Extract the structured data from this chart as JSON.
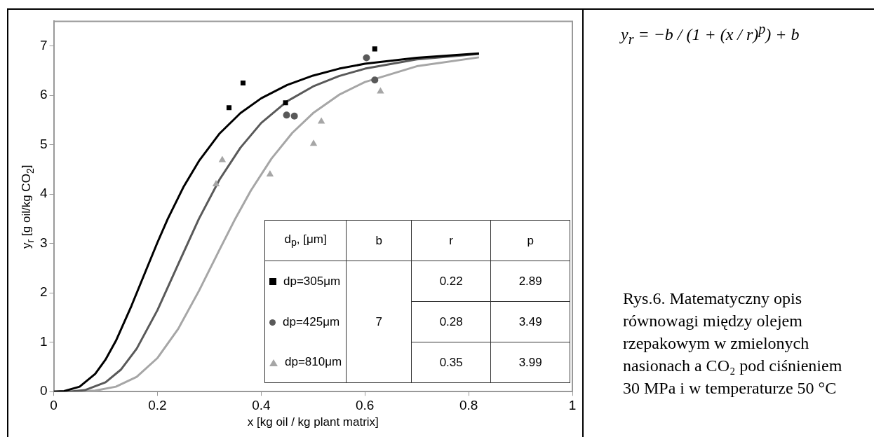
{
  "chart_data": {
    "type": "scatter",
    "xlabel": "x [kg oil / kg plant matrix]",
    "ylabel": "y$_{r}$ [g oil/kg CO$_{2}$]",
    "xlim": [
      0,
      1
    ],
    "xticks": [
      0,
      0.2,
      0.4,
      0.6,
      0.8,
      1
    ],
    "ylim": [
      0,
      7.5
    ],
    "yticks": [
      0,
      1,
      2,
      3,
      4,
      5,
      6,
      7
    ],
    "grid": false,
    "legend": "bottom right",
    "series": [
      {
        "type": "scatter",
        "name": "dp=305μm",
        "color": "#000000",
        "marker": "square",
        "x": [
          0.338,
          0.365,
          0.447,
          0.619
        ],
        "values": [
          5.75,
          6.25,
          5.85,
          6.94
        ]
      },
      {
        "type": "scatter",
        "name": "dp=425μm",
        "color": "#595959",
        "marker": "circle",
        "x": [
          0.449,
          0.464,
          0.603,
          0.619
        ],
        "values": [
          5.6,
          5.58,
          6.76,
          6.31
        ]
      },
      {
        "type": "scatter",
        "name": "dp=810μm",
        "color": "#a6a6a6",
        "marker": "triangle",
        "x": [
          0.313,
          0.325,
          0.417,
          0.501,
          0.516,
          0.63
        ],
        "values": [
          4.2,
          4.69,
          4.4,
          5.02,
          5.47,
          6.08
        ]
      },
      {
        "type": "line",
        "color": "#000000",
        "marker": "none",
        "x": [
          0,
          0.02,
          0.05,
          0.08,
          0.1,
          0.12,
          0.15,
          0.18,
          0.2,
          0.22,
          0.25,
          0.28,
          0.32,
          0.36,
          0.4,
          0.45,
          0.5,
          0.55,
          0.6,
          0.7,
          0.82
        ],
        "values": [
          0,
          0.01,
          0.1,
          0.36,
          0.65,
          1.03,
          1.74,
          2.51,
          3.02,
          3.5,
          4.14,
          4.67,
          5.23,
          5.64,
          5.94,
          6.21,
          6.4,
          6.54,
          6.64,
          6.76,
          6.85
        ]
      },
      {
        "type": "line",
        "color": "#595959",
        "marker": "none",
        "x": [
          0,
          0.03,
          0.06,
          0.1,
          0.13,
          0.16,
          0.2,
          0.24,
          0.28,
          0.32,
          0.36,
          0.4,
          0.45,
          0.5,
          0.55,
          0.6,
          0.7,
          0.82
        ],
        "values": [
          0,
          0,
          0.03,
          0.19,
          0.45,
          0.87,
          1.65,
          2.58,
          3.5,
          4.3,
          4.94,
          5.44,
          5.88,
          6.18,
          6.39,
          6.54,
          6.73,
          6.84
        ]
      },
      {
        "type": "line",
        "color": "#a6a6a6",
        "marker": "none",
        "x": [
          0,
          0.04,
          0.08,
          0.12,
          0.16,
          0.2,
          0.24,
          0.28,
          0.32,
          0.35,
          0.38,
          0.42,
          0.46,
          0.5,
          0.55,
          0.6,
          0.7,
          0.82
        ],
        "values": [
          0,
          0,
          0.02,
          0.1,
          0.3,
          0.68,
          1.27,
          2.04,
          2.88,
          3.5,
          4.07,
          4.72,
          5.24,
          5.64,
          6.01,
          6.27,
          6.59,
          6.77
        ]
      }
    ],
    "annotations": [
      "d$_{p}$, [μm]",
      "b",
      "r",
      "p",
      "7",
      "0.22",
      "2.89",
      "0.28",
      "3.49",
      "0.35",
      "3.99",
      "y$_{r}$ = −b / (1 + (x / r)$^{p}$) + b",
      "Rys.6. Matematyczny opis równowagi między olejem rzepakowym w zmielonych nasionach a CO₂ pod ciśnieniem 30 MPa i w temperaturze 50 °C"
    ]
  }
}
